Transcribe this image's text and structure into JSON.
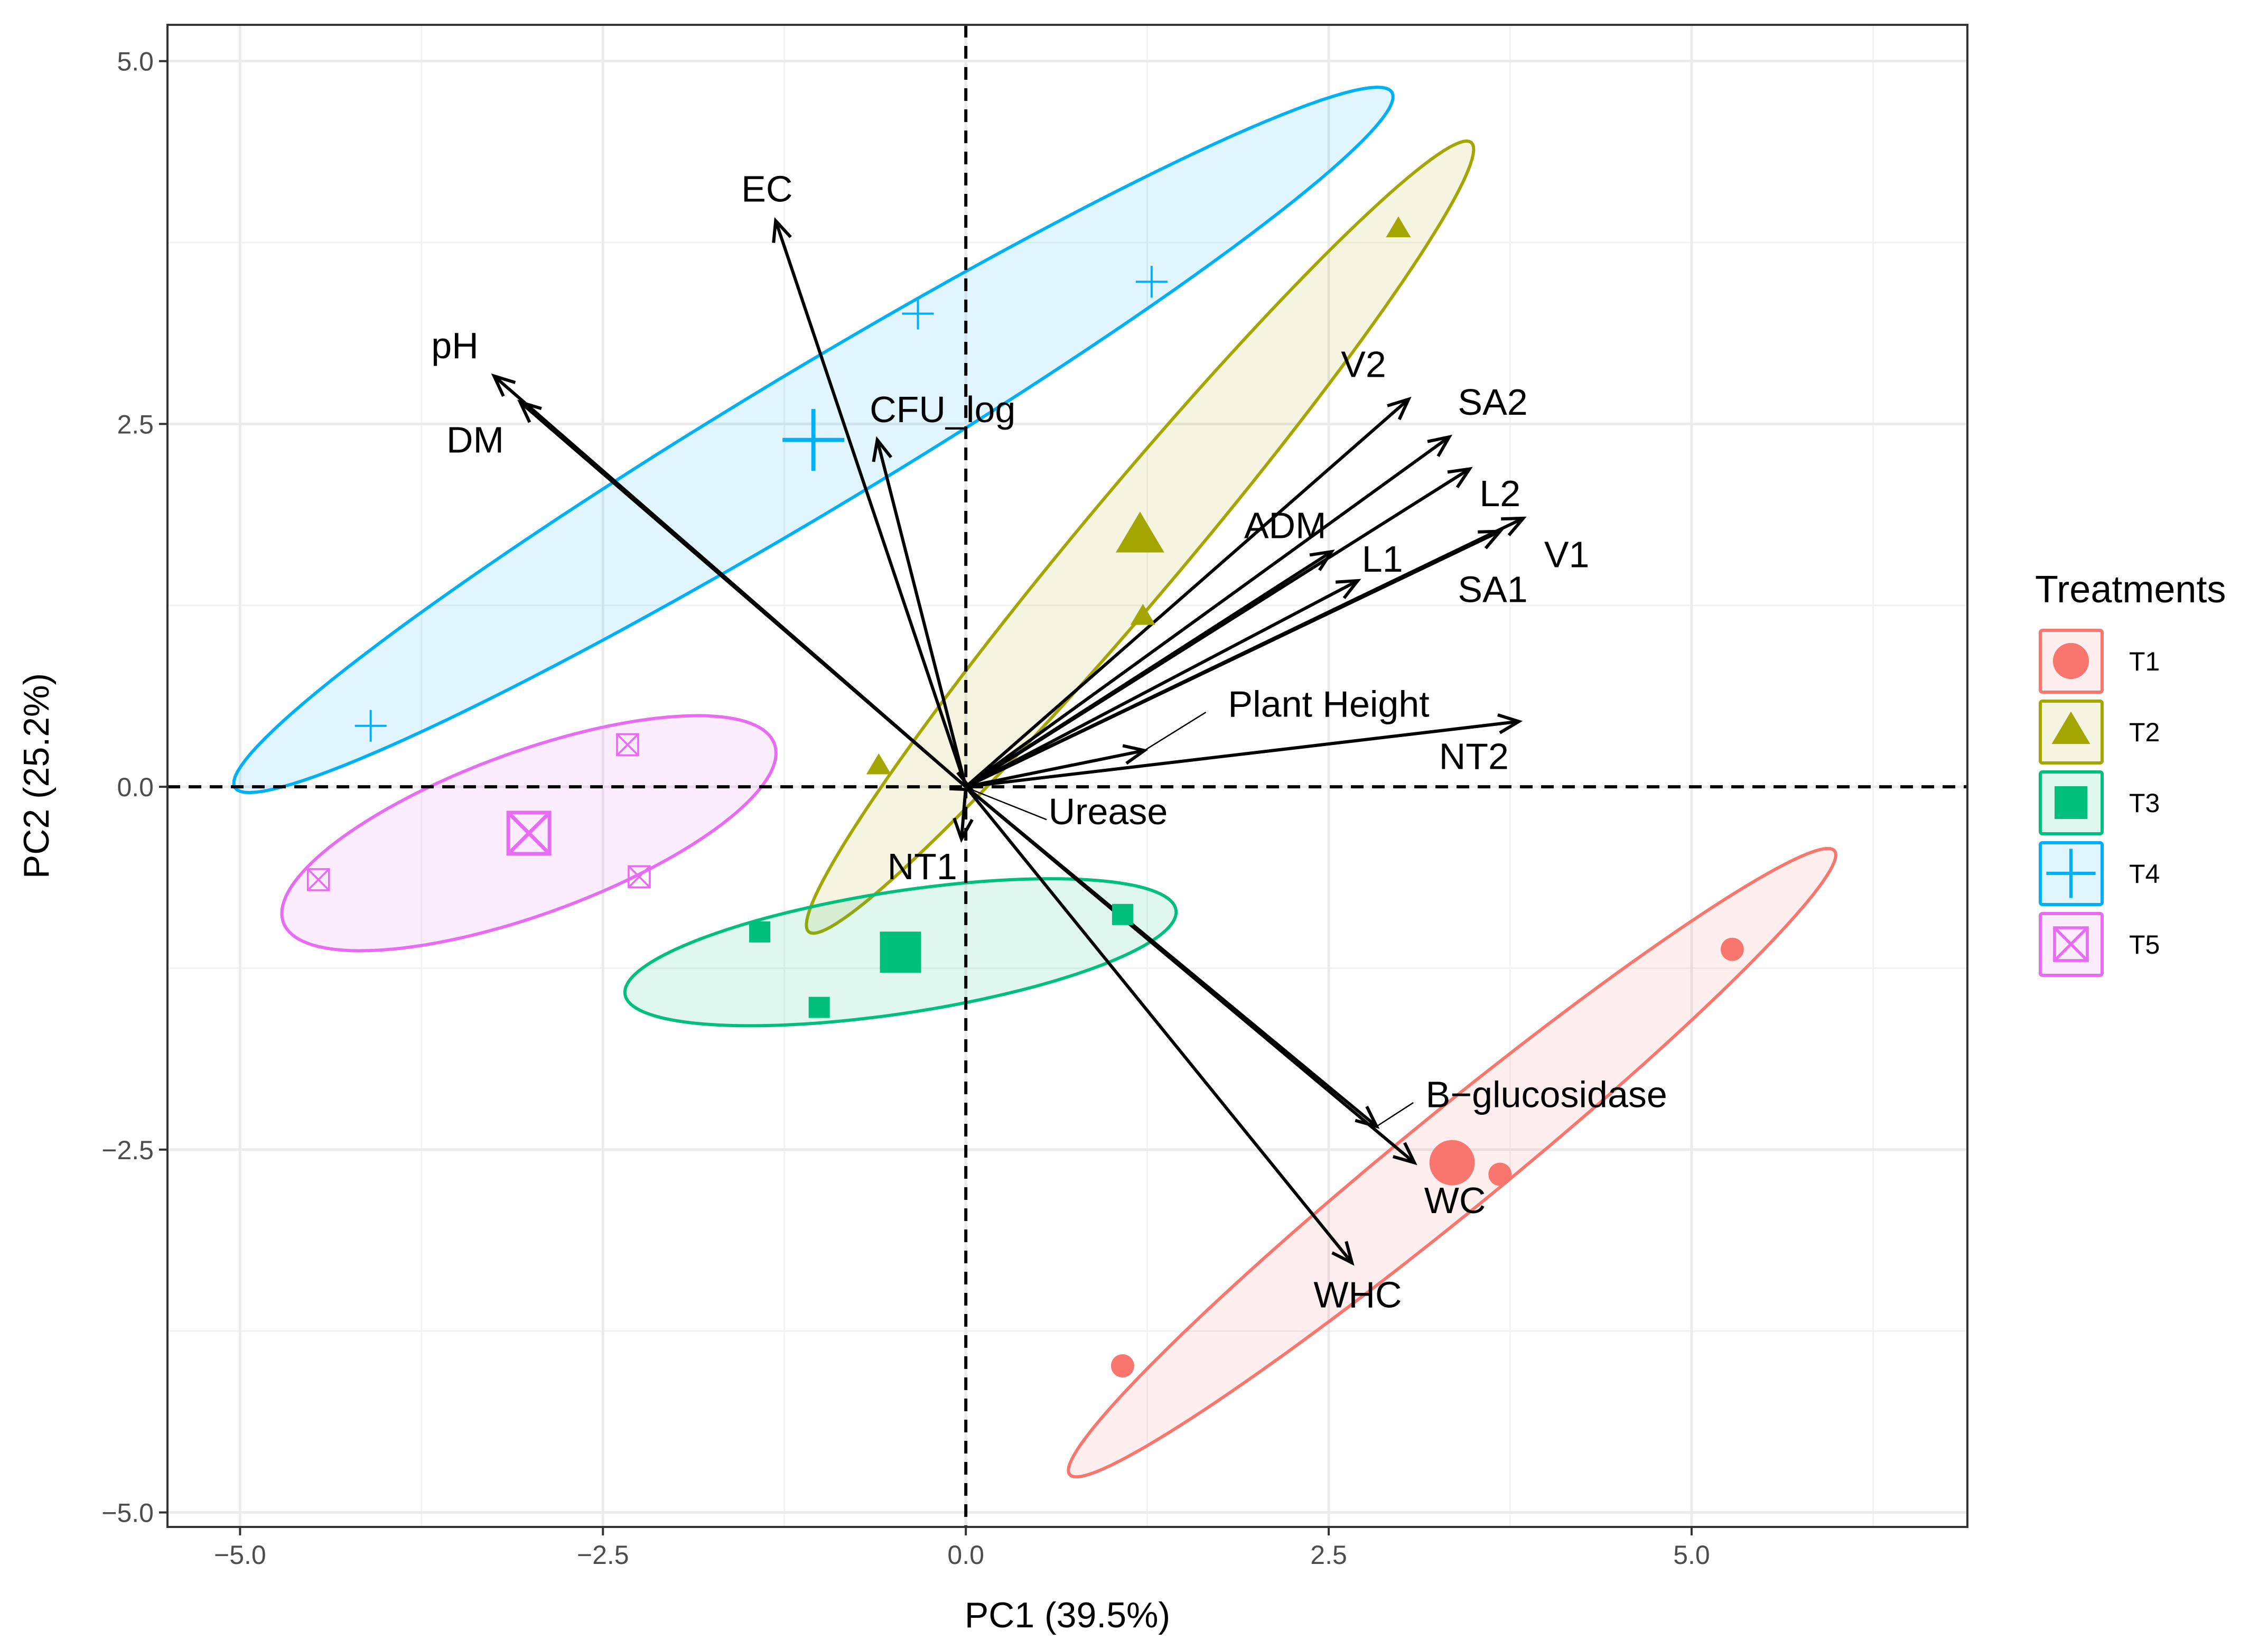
{
  "chart_data": {
    "type": "scatter",
    "subtype": "pca-biplot",
    "xlabel": "PC1 (39.5%)",
    "ylabel": "PC2 (25.2%)",
    "xlim": [
      -5.5,
      6.9
    ],
    "ylim": [
      -5.1,
      5.25
    ],
    "xticks": [
      -5.0,
      -2.5,
      0.0,
      2.5,
      5.0
    ],
    "xtick_labels": [
      "−5.0",
      "−2.5",
      "0.0",
      "2.5",
      "5.0"
    ],
    "yticks": [
      -5.0,
      -2.5,
      0.0,
      2.5,
      5.0
    ],
    "ytick_labels": [
      "−5.0",
      "−2.5",
      "0.0",
      "2.5",
      "5.0"
    ],
    "grid": true,
    "reference_lines": {
      "x": 0,
      "y": 0,
      "style": "dashed"
    },
    "legend": {
      "title": "Treatments",
      "position": "right",
      "items": [
        {
          "label": "T1",
          "color": "#F8766D",
          "shape": "circle"
        },
        {
          "label": "T2",
          "color": "#A3A500",
          "shape": "triangle"
        },
        {
          "label": "T3",
          "color": "#00BF7D",
          "shape": "square"
        },
        {
          "label": "T4",
          "color": "#00B0F6",
          "shape": "plus"
        },
        {
          "label": "T5",
          "color": "#E76BF3",
          "shape": "boxcross"
        }
      ]
    },
    "series": [
      {
        "name": "T1",
        "color": "#F8766D",
        "shape": "circle",
        "points": [
          [
            5.28,
            -1.12
          ],
          [
            3.68,
            -2.67
          ],
          [
            1.08,
            -3.99
          ]
        ],
        "centroid": [
          3.35,
          -2.59
        ],
        "ellipse": {
          "cx": 3.35,
          "cy": -2.59,
          "rx": 3.4,
          "ry": 0.34,
          "angle_deg": 39.2
        }
      },
      {
        "name": "T2",
        "color": "#A3A500",
        "shape": "triangle",
        "points": [
          [
            2.98,
            3.84
          ],
          [
            1.22,
            1.17
          ],
          [
            -0.6,
            0.14
          ]
        ],
        "centroid": [
          1.2,
          1.72
        ],
        "ellipse": {
          "cx": 1.2,
          "cy": 1.72,
          "rx": 3.55,
          "ry": 0.36,
          "angle_deg": 50.0
        }
      },
      {
        "name": "T3",
        "color": "#00BF7D",
        "shape": "square",
        "points": [
          [
            1.08,
            -0.88
          ],
          [
            -1.42,
            -1.0
          ],
          [
            -1.01,
            -1.52
          ]
        ],
        "centroid": [
          -0.45,
          -1.14
        ],
        "ellipse": {
          "cx": -0.45,
          "cy": -1.14,
          "rx": 1.92,
          "ry": 0.42,
          "angle_deg": 8.7
        }
      },
      {
        "name": "T4",
        "color": "#00B0F6",
        "shape": "plus",
        "points": [
          [
            1.28,
            3.48
          ],
          [
            -0.33,
            3.26
          ],
          [
            -4.1,
            0.42
          ]
        ],
        "centroid": [
          -1.05,
          2.39
        ],
        "ellipse": {
          "cx": -1.05,
          "cy": 2.39,
          "rx": 4.65,
          "ry": 0.48,
          "angle_deg": 31.0
        }
      },
      {
        "name": "T5",
        "color": "#E76BF3",
        "shape": "boxcross",
        "points": [
          [
            -2.33,
            0.29
          ],
          [
            -2.25,
            -0.62
          ],
          [
            -4.46,
            -0.64
          ]
        ],
        "centroid": [
          -3.01,
          -0.32
        ],
        "ellipse": {
          "cx": -3.01,
          "cy": -0.32,
          "rx": 1.8,
          "ry": 0.56,
          "angle_deg": 20.0
        }
      }
    ],
    "loadings": [
      {
        "name": "EC",
        "x": -1.31,
        "y": 3.9,
        "label_x": -1.37,
        "label_y": 4.1
      },
      {
        "name": "pH",
        "x": -3.25,
        "y": 2.83,
        "label_x": -3.52,
        "label_y": 3.02
      },
      {
        "name": "DM",
        "x": -3.07,
        "y": 2.65,
        "label_x": -3.38,
        "label_y": 2.37
      },
      {
        "name": "CFU_log",
        "x": -0.61,
        "y": 2.39,
        "label_x": -0.16,
        "label_y": 2.58
      },
      {
        "name": "V2",
        "x": 3.05,
        "y": 2.67,
        "label_x": 2.74,
        "label_y": 2.89
      },
      {
        "name": "SA2",
        "x": 3.33,
        "y": 2.41,
        "label_x": 3.63,
        "label_y": 2.63
      },
      {
        "name": "L2",
        "x": 3.47,
        "y": 2.19,
        "label_x": 3.68,
        "label_y": 2.0
      },
      {
        "name": "V1",
        "x": 3.84,
        "y": 1.85,
        "label_x": 4.14,
        "label_y": 1.58
      },
      {
        "name": "SA1",
        "x": 3.68,
        "y": 1.76,
        "label_x": 3.63,
        "label_y": 1.34
      },
      {
        "name": "ADM",
        "x": 2.52,
        "y": 1.62,
        "label_x": 2.2,
        "label_y": 1.78
      },
      {
        "name": "L1",
        "x": 2.7,
        "y": 1.42,
        "label_x": 2.87,
        "label_y": 1.55
      },
      {
        "name": "Plant Height",
        "x": 1.23,
        "y": 0.25,
        "label_x": 2.5,
        "label_y": 0.55
      },
      {
        "name": "NT2",
        "x": 3.81,
        "y": 0.45,
        "label_x": 3.5,
        "label_y": 0.19
      },
      {
        "name": "Urease",
        "x": 0.04,
        "y": -0.02,
        "label_x": 0.98,
        "label_y": -0.19
      },
      {
        "name": "NT1",
        "x": -0.03,
        "y": -0.36,
        "label_x": -0.3,
        "label_y": -0.57
      },
      {
        "name": "B−glucosidase",
        "x": 2.83,
        "y": -2.34,
        "label_x": 4.0,
        "label_y": -2.14
      },
      {
        "name": "WC",
        "x": 3.09,
        "y": -2.59,
        "label_x": 3.37,
        "label_y": -2.87
      },
      {
        "name": "WHC",
        "x": 2.66,
        "y": -3.28,
        "label_x": 2.7,
        "label_y": -3.52
      }
    ]
  }
}
